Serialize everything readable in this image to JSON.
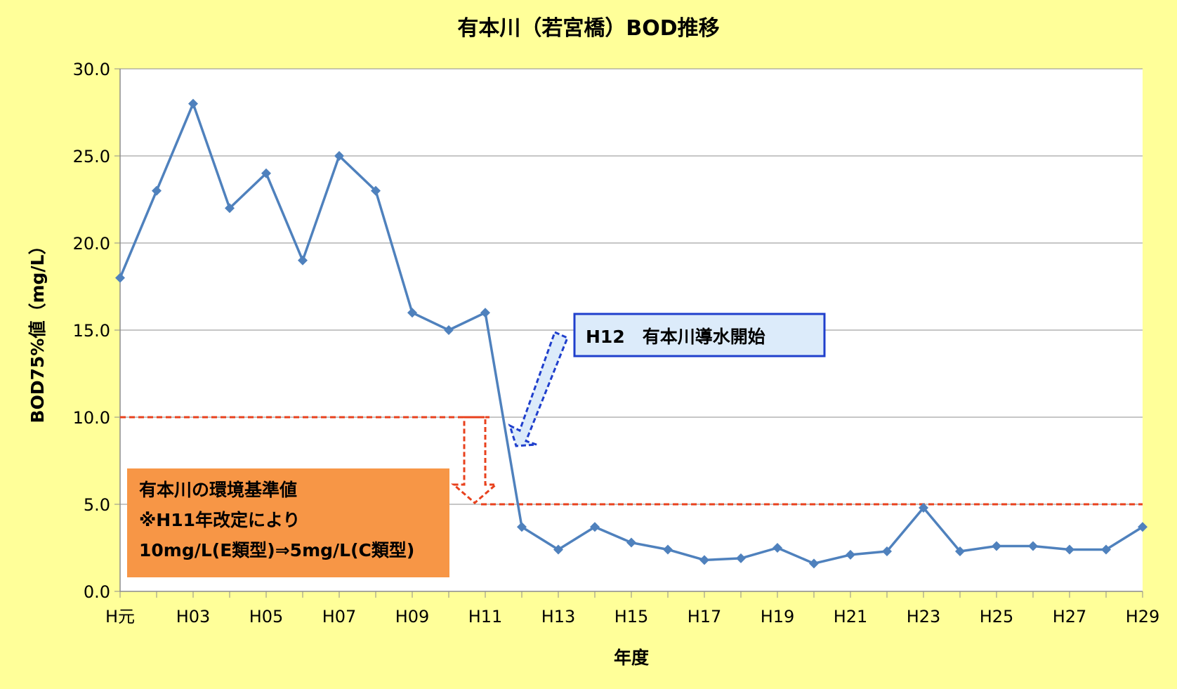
{
  "chart_data": {
    "type": "line",
    "title": "有本川（若宮橋）BOD推移",
    "xlabel": "年度",
    "ylabel": "BOD75%値（mg/L）",
    "ylim": [
      0,
      30
    ],
    "yticks": [
      "0.0",
      "5.0",
      "10.0",
      "15.0",
      "20.0",
      "25.0",
      "30.0"
    ],
    "x": [
      "H元",
      "H02",
      "H03",
      "H04",
      "H05",
      "H06",
      "H07",
      "H08",
      "H09",
      "H10",
      "H11",
      "H12",
      "H13",
      "H14",
      "H15",
      "H16",
      "H17",
      "H18",
      "H19",
      "H20",
      "H21",
      "H22",
      "H23",
      "H24",
      "H25",
      "H26",
      "H27",
      "H28",
      "H29"
    ],
    "x_tick_labels": [
      "H元",
      "",
      "H03",
      "",
      "H05",
      "",
      "H07",
      "",
      "H09",
      "",
      "H11",
      "",
      "H13",
      "",
      "H15",
      "",
      "H17",
      "",
      "H19",
      "",
      "H21",
      "",
      "H23",
      "",
      "H25",
      "",
      "H27",
      "",
      "H29"
    ],
    "series": [
      {
        "values": [
          18,
          23,
          28,
          22,
          24,
          19,
          25,
          23,
          16,
          15,
          16,
          3.7,
          2.4,
          3.7,
          2.8,
          2.4,
          1.8,
          1.9,
          2.5,
          1.6,
          2.1,
          2.3,
          4.8,
          2.3,
          2.6,
          2.6,
          2.4,
          2.4,
          3.7
        ],
        "color": "#4F81BD"
      }
    ],
    "grid": true,
    "standard_lines": [
      {
        "value": 10,
        "from": "H元",
        "to": "H11",
        "color": "#E8411D"
      },
      {
        "value": 5,
        "from": "H11",
        "to": "H29",
        "color": "#E8411D"
      }
    ],
    "annotations": {
      "h12_label": "H12　有本川導水開始",
      "standard_box": [
        "有本川の環境基準値",
        "※H11年改定により",
        "10mg/L(E類型)⇒5mg/L(C類型)"
      ]
    }
  },
  "colors": {
    "background": "#FFFF99",
    "plot_bg": "#FFFFFF",
    "series": "#4F81BD",
    "standard": "#E8411D",
    "callout_fill": "#DCEBFA",
    "callout_border": "#1F3FCC",
    "box_fill": "#F79646"
  }
}
